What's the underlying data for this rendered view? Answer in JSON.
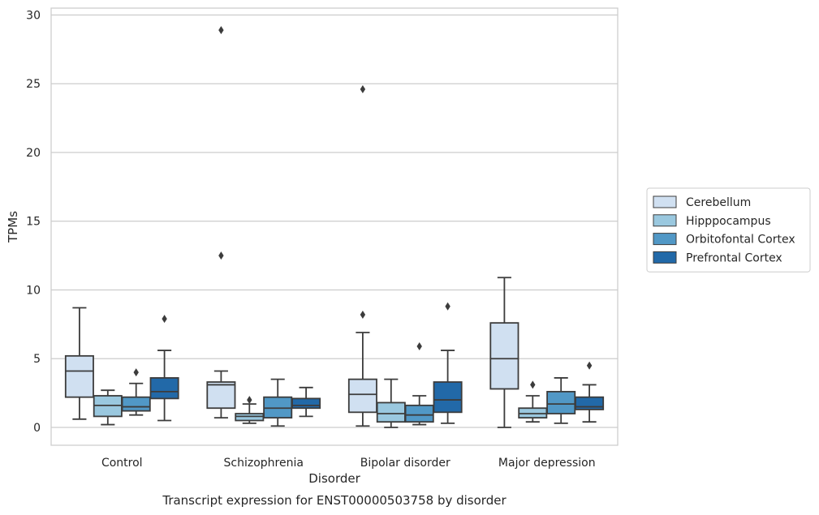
{
  "chart_data": {
    "type": "box",
    "title": "Transcript expression for ENST00000503758 by disorder",
    "xlabel": "Disorder",
    "ylabel": "TPMs",
    "categories": [
      "Control",
      "Schizophrenia",
      "Bipolar disorder",
      "Major depression"
    ],
    "ylim": [
      -1.3,
      30.5
    ],
    "yticks": [
      0,
      5,
      10,
      15,
      20,
      25,
      30
    ],
    "grid": "horizontal",
    "legend_position": "right",
    "series": [
      {
        "name": "Cerebellum",
        "color": "#d0e0f1",
        "boxes": [
          {
            "whislo": 0.6,
            "q1": 2.2,
            "med": 4.1,
            "q3": 5.2,
            "whishi": 8.7,
            "fliers": []
          },
          {
            "whislo": 0.7,
            "q1": 1.4,
            "med": 3.1,
            "q3": 3.3,
            "whishi": 4.1,
            "fliers": [
              12.5,
              28.9
            ]
          },
          {
            "whislo": 0.1,
            "q1": 1.1,
            "med": 2.4,
            "q3": 3.5,
            "whishi": 6.9,
            "fliers": [
              8.2,
              24.6
            ]
          },
          {
            "whislo": 0.0,
            "q1": 2.8,
            "med": 5.0,
            "q3": 7.6,
            "whishi": 10.9,
            "fliers": []
          }
        ]
      },
      {
        "name": "Hipppocampus",
        "color": "#9ac8df",
        "boxes": [
          {
            "whislo": 0.2,
            "q1": 0.8,
            "med": 1.6,
            "q3": 2.3,
            "whishi": 2.7,
            "fliers": []
          },
          {
            "whislo": 0.3,
            "q1": 0.5,
            "med": 0.8,
            "q3": 1.0,
            "whishi": 1.7,
            "fliers": [
              2.0
            ]
          },
          {
            "whislo": 0.0,
            "q1": 0.4,
            "med": 1.0,
            "q3": 1.8,
            "whishi": 3.5,
            "fliers": []
          },
          {
            "whislo": 0.4,
            "q1": 0.7,
            "med": 1.0,
            "q3": 1.4,
            "whishi": 2.3,
            "fliers": [
              3.1
            ]
          }
        ]
      },
      {
        "name": "Orbitofontal Cortex",
        "color": "#5198c6",
        "boxes": [
          {
            "whislo": 0.9,
            "q1": 1.2,
            "med": 1.5,
            "q3": 2.2,
            "whishi": 3.2,
            "fliers": [
              4.0
            ]
          },
          {
            "whislo": 0.1,
            "q1": 0.7,
            "med": 1.4,
            "q3": 2.2,
            "whishi": 3.5,
            "fliers": []
          },
          {
            "whislo": 0.2,
            "q1": 0.4,
            "med": 0.9,
            "q3": 1.6,
            "whishi": 2.3,
            "fliers": [
              5.9
            ]
          },
          {
            "whislo": 0.3,
            "q1": 1.0,
            "med": 1.7,
            "q3": 2.6,
            "whishi": 3.6,
            "fliers": []
          }
        ]
      },
      {
        "name": "Prefrontal Cortex",
        "color": "#2269a8",
        "boxes": [
          {
            "whislo": 0.5,
            "q1": 2.1,
            "med": 2.6,
            "q3": 3.6,
            "whishi": 5.6,
            "fliers": [
              7.9
            ]
          },
          {
            "whislo": 0.8,
            "q1": 1.4,
            "med": 1.6,
            "q3": 2.1,
            "whishi": 2.9,
            "fliers": []
          },
          {
            "whislo": 0.3,
            "q1": 1.1,
            "med": 2.0,
            "q3": 3.3,
            "whishi": 5.6,
            "fliers": [
              8.8
            ]
          },
          {
            "whislo": 0.4,
            "q1": 1.3,
            "med": 1.5,
            "q3": 2.2,
            "whishi": 3.1,
            "fliers": [
              4.5
            ]
          }
        ]
      }
    ]
  }
}
